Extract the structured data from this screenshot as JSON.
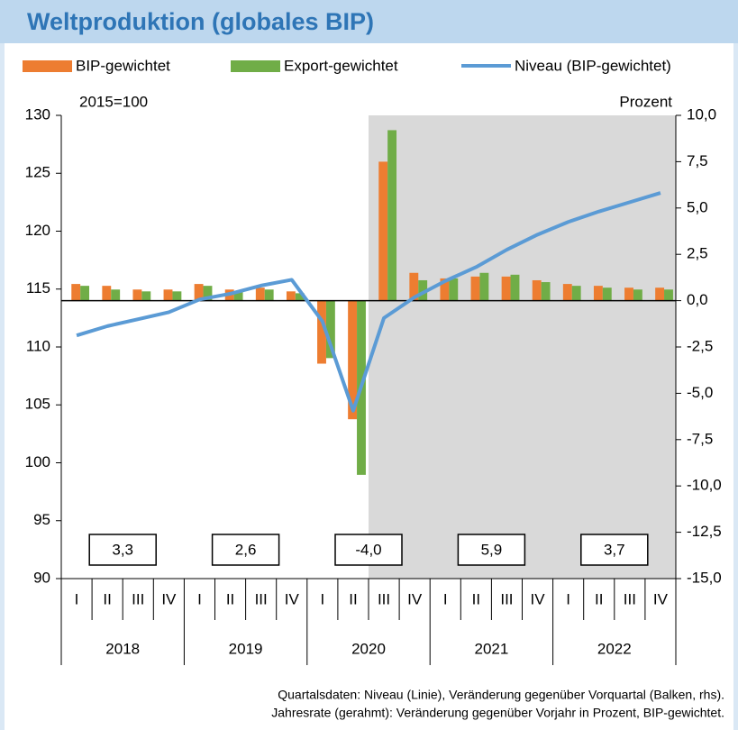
{
  "chart_data": {
    "type": "combo",
    "title": "Weltproduktion (globales BIP)",
    "y_axis_label": "2015=100",
    "y2_axis_label": "Prozent",
    "categories": [
      "I",
      "II",
      "III",
      "IV",
      "I",
      "II",
      "III",
      "IV",
      "I",
      "II",
      "III",
      "IV",
      "I",
      "II",
      "III",
      "IV",
      "I",
      "II",
      "III",
      "IV"
    ],
    "year_labels": [
      "2018",
      "2019",
      "2020",
      "2021",
      "2022"
    ],
    "series": [
      {
        "name": "BIP-gewichtet",
        "type": "bar",
        "axis": "y2",
        "color": "#ed7d31",
        "values": [
          0.9,
          0.8,
          0.6,
          0.6,
          0.9,
          0.6,
          0.7,
          0.5,
          -3.4,
          -6.4,
          7.5,
          1.5,
          1.2,
          1.3,
          1.3,
          1.1,
          0.9,
          0.8,
          0.7,
          0.7
        ]
      },
      {
        "name": "Export-gewichtet",
        "type": "bar",
        "axis": "y2",
        "color": "#70ad47",
        "values": [
          0.8,
          0.6,
          0.5,
          0.5,
          0.8,
          0.5,
          0.6,
          0.4,
          -3.1,
          -9.4,
          9.2,
          1.1,
          1.2,
          1.5,
          1.4,
          1.0,
          0.8,
          0.7,
          0.6,
          0.6
        ]
      },
      {
        "name": "Niveau (BIP-gewichtet)",
        "type": "line",
        "axis": "y",
        "color": "#5b9bd5",
        "values": [
          111.0,
          111.8,
          112.4,
          113.0,
          114.1,
          114.6,
          115.3,
          115.8,
          112.2,
          104.5,
          112.5,
          114.3,
          115.7,
          116.9,
          118.4,
          119.7,
          120.8,
          121.7,
          122.5,
          123.3
        ]
      }
    ],
    "annual_rates": {
      "values": [
        3.3,
        2.6,
        -4.0,
        5.9,
        3.7
      ],
      "value_labels": [
        "3,3",
        "2,6",
        "-4,0",
        "5,9",
        "3,7"
      ]
    },
    "ylim": [
      90,
      130
    ],
    "yticks": [
      90,
      95,
      100,
      105,
      110,
      115,
      120,
      125,
      130
    ],
    "y2lim": [
      -15,
      10
    ],
    "y2ticks": [
      {
        "value": -15,
        "label": "-15,0"
      },
      {
        "value": -12.5,
        "label": "-12,5"
      },
      {
        "value": -10,
        "label": "-10,0"
      },
      {
        "value": -7.5,
        "label": "-7,5"
      },
      {
        "value": -5,
        "label": "-5,0"
      },
      {
        "value": -2.5,
        "label": "-2,5"
      },
      {
        "value": 0,
        "label": "0,0"
      },
      {
        "value": 2.5,
        "label": "2,5"
      },
      {
        "value": 5,
        "label": "5,0"
      },
      {
        "value": 7.5,
        "label": "7,5"
      },
      {
        "value": 10,
        "label": "10,0"
      }
    ],
    "shaded_from_index": 10,
    "shade_color": "#d9d9d9",
    "legend": "top",
    "notes": [
      "Quartalsdaten: Niveau (Linie), Veränderung gegenüber Vorquartal (Balken, rhs).",
      "Jahresrate (gerahmt): Veränderung gegenüber Vorjahr in Prozent, BIP-gewichtet."
    ]
  }
}
